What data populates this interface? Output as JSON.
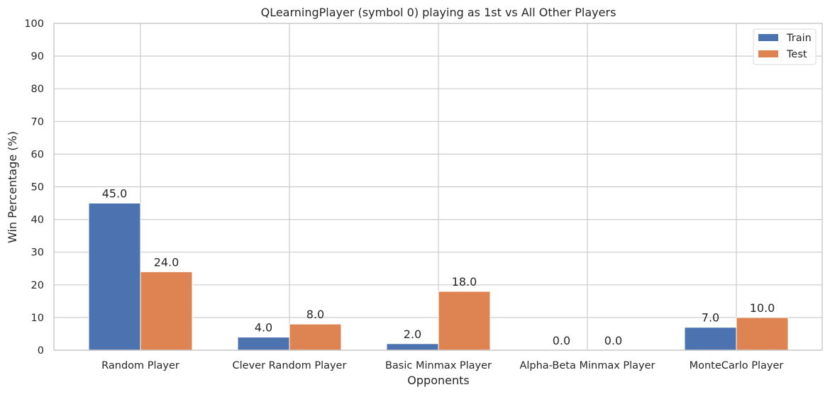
{
  "chart_data": {
    "type": "bar",
    "title": "QLearningPlayer (symbol 0) playing as 1st vs All Other Players",
    "xlabel": "Opponents",
    "ylabel": "Win Percentage (%)",
    "ylim": [
      0,
      100
    ],
    "yticks": [
      0,
      10,
      20,
      30,
      40,
      50,
      60,
      70,
      80,
      90,
      100
    ],
    "categories": [
      "Random Player",
      "Clever Random Player",
      "Basic Minmax Player",
      "Alpha-Beta Minmax Player",
      "MonteCarlo Player"
    ],
    "series": [
      {
        "name": "Train",
        "values": [
          45.0,
          4.0,
          2.0,
          0.0,
          7.0
        ],
        "color": "#4c72b0"
      },
      {
        "name": "Test",
        "values": [
          24.0,
          8.0,
          18.0,
          0.0,
          10.0
        ],
        "color": "#dd8452"
      }
    ],
    "data_labels": [
      [
        "45.0",
        "4.0",
        "2.0",
        "0.0",
        "7.0"
      ],
      [
        "24.0",
        "8.0",
        "18.0",
        "0.0",
        "10.0"
      ]
    ],
    "grid": true,
    "legend_position": "top-right",
    "colors": {
      "grid": "#cccccc",
      "frame": "#cccccc",
      "text": "#262626",
      "background": "#ffffff"
    }
  }
}
